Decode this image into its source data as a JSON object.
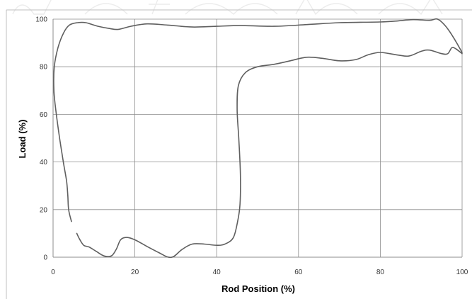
{
  "chart_data": {
    "type": "line",
    "xlabel": "Rod Position (%)",
    "ylabel": "Load (%)",
    "xlim": [
      0,
      100
    ],
    "ylim": [
      0,
      100
    ],
    "xticks": [
      0,
      20,
      40,
      60,
      80,
      100
    ],
    "yticks": [
      0,
      20,
      40,
      60,
      80,
      100
    ],
    "grid": "horizontal and vertical major gridlines",
    "line_color": "#5f5f5f",
    "series": [
      {
        "points": [
          [
            4.5,
            15
          ],
          [
            3.8,
            20
          ],
          [
            3.6,
            26
          ],
          [
            3.3,
            32
          ],
          [
            2.5,
            40
          ],
          [
            1.6,
            50
          ],
          [
            0.8,
            60
          ],
          [
            0.2,
            70
          ],
          [
            0.3,
            80
          ],
          [
            1.2,
            88
          ],
          [
            2.5,
            94
          ],
          [
            4,
            97.5
          ],
          [
            6,
            98.5
          ],
          [
            8,
            98.5
          ],
          [
            11,
            97
          ],
          [
            14,
            96
          ],
          [
            16,
            95.7
          ],
          [
            19,
            97
          ],
          [
            23,
            98
          ],
          [
            28,
            97.5
          ],
          [
            34,
            96.7
          ],
          [
            40,
            97
          ],
          [
            46,
            97.3
          ],
          [
            54,
            97
          ],
          [
            62,
            97.7
          ],
          [
            70,
            98.5
          ],
          [
            80,
            98.8
          ],
          [
            84,
            99.2
          ],
          [
            88,
            99.8
          ],
          [
            92,
            99.5
          ],
          [
            94,
            100
          ],
          [
            96,
            97
          ],
          [
            98,
            92
          ],
          [
            100,
            86
          ]
        ]
      },
      {
        "points": [
          [
            5.8,
            10
          ],
          [
            6.5,
            7.5
          ],
          [
            7.5,
            5
          ],
          [
            8.8,
            4.3
          ],
          [
            10.5,
            2.5
          ],
          [
            12.5,
            0.5
          ],
          [
            14.3,
            0.6
          ],
          [
            15.5,
            3.5
          ],
          [
            16.5,
            7.3
          ],
          [
            18,
            8.3
          ],
          [
            20,
            7.3
          ],
          [
            23,
            4.5
          ],
          [
            26,
            1.8
          ],
          [
            28,
            0.1
          ],
          [
            29.5,
            0.3
          ],
          [
            31.5,
            3.2
          ],
          [
            34,
            5.5
          ],
          [
            37,
            5.5
          ],
          [
            40,
            5
          ],
          [
            42,
            5.5
          ],
          [
            44,
            8
          ],
          [
            45,
            14
          ],
          [
            45.7,
            22
          ],
          [
            45.8,
            35
          ],
          [
            45.4,
            50
          ],
          [
            45,
            62
          ],
          [
            45.3,
            72
          ],
          [
            47,
            77.5
          ],
          [
            50,
            80
          ],
          [
            54,
            81
          ],
          [
            58,
            82.5
          ],
          [
            62,
            84
          ],
          [
            66,
            83.5
          ],
          [
            70,
            82.5
          ],
          [
            74,
            83
          ],
          [
            77,
            85
          ],
          [
            80,
            86
          ],
          [
            84,
            85
          ],
          [
            87,
            84.5
          ],
          [
            90,
            86.5
          ],
          [
            92,
            87
          ],
          [
            95,
            85.5
          ],
          [
            96.5,
            85.5
          ],
          [
            97.5,
            88
          ],
          [
            98.5,
            87.5
          ],
          [
            100,
            85.5
          ]
        ]
      }
    ]
  }
}
